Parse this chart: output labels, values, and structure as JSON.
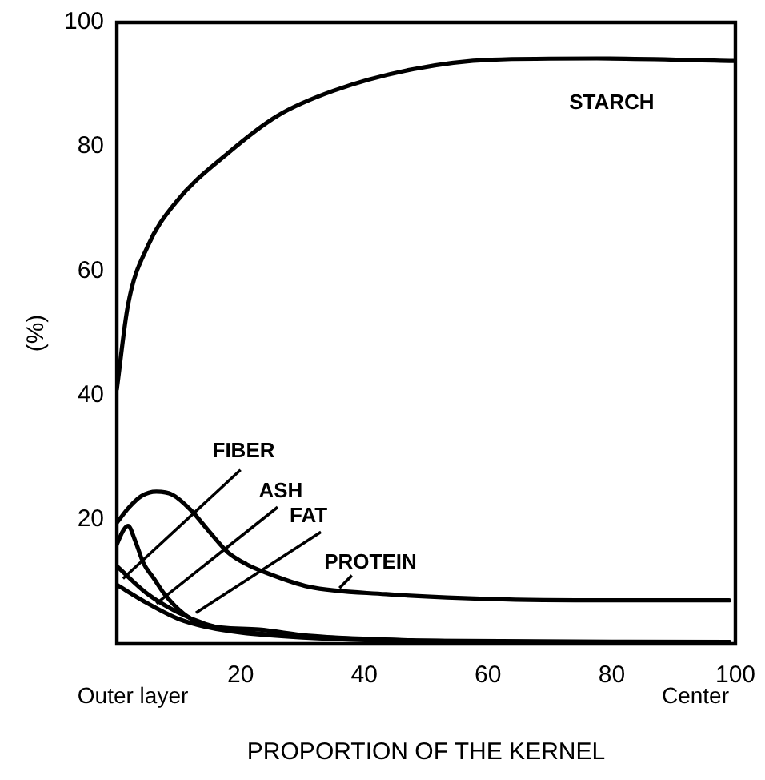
{
  "chart_data": {
    "type": "line",
    "xlabel": "PROPORTION OF THE KERNEL",
    "ylabel": "(%)",
    "xlim": [
      0,
      100
    ],
    "ylim": [
      0,
      100
    ],
    "xticks": [
      20,
      40,
      60,
      80,
      100
    ],
    "yticks": [
      20,
      40,
      60,
      80,
      100
    ],
    "grid": false,
    "legend": false,
    "marker": "none",
    "line_style": "solid",
    "annotations": [
      "Outer layer",
      "Center"
    ],
    "series": [
      {
        "name": "STARCH",
        "color": "#000000",
        "x": [
          0,
          1.8,
          5,
          9.5,
          18,
          26,
          35,
          48,
          60.6,
          77.6,
          99.7
        ],
        "values": [
          41,
          54.5,
          64,
          71,
          79,
          85,
          89,
          92.5,
          94,
          94.2,
          93.8
        ]
      },
      {
        "name": "PROTEIN",
        "color": "#000000",
        "x": [
          0,
          2,
          4,
          6.4,
          9,
          12,
          15,
          18,
          21,
          24,
          31,
          43.5,
          60.6,
          80,
          99
        ],
        "values": [
          19.5,
          22,
          23.8,
          24.5,
          24,
          21.5,
          18,
          14.7,
          12.8,
          11.5,
          9.2,
          8,
          7.2,
          7,
          7
        ]
      },
      {
        "name": "FAT",
        "color": "#000000",
        "x": [
          0,
          1,
          1.8,
          3,
          4.3,
          6,
          7.7,
          11,
          14.5,
          23,
          31,
          50,
          70,
          99
        ],
        "values": [
          16,
          18.2,
          19,
          16.5,
          13,
          10.5,
          8,
          4.7,
          3,
          2.3,
          1.3,
          0.5,
          0.3,
          0.3
        ]
      },
      {
        "name": "FIBER",
        "color": "#000000",
        "x": [
          0,
          5,
          10,
          15,
          20,
          30,
          50,
          99
        ],
        "values": [
          12.5,
          8,
          5,
          3,
          2,
          1.2,
          0.5,
          0.3
        ]
      },
      {
        "name": "ASH",
        "color": "#000000",
        "x": [
          0,
          5,
          10,
          15,
          20,
          30,
          50,
          99
        ],
        "values": [
          9.5,
          6.5,
          4,
          2.6,
          1.8,
          1,
          0.4,
          0.2
        ]
      }
    ]
  }
}
